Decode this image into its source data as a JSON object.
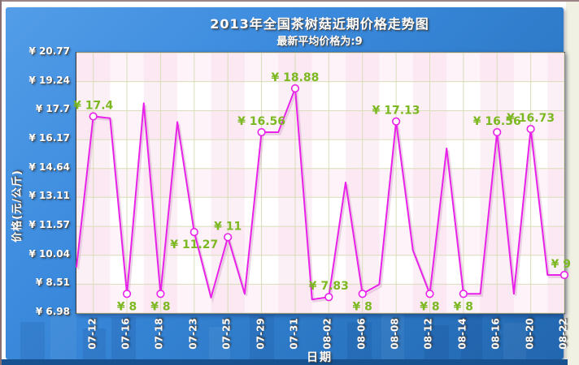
{
  "header": {
    "title": "2013年全国茶树菇近期价格走势图",
    "subtitle": "最新平均价格为:9"
  },
  "chart_data": {
    "type": "line",
    "title": "2013年全国茶树菇近期价格走势图",
    "subtitle": "最新平均价格为:9",
    "xlabel": "日期",
    "ylabel": "价格(元/公斤)",
    "ylim": [
      6.98,
      20.77
    ],
    "grid": true,
    "legend": "none",
    "y_ticks": [
      {
        "value": 20.77,
        "label": "¥ 20.77"
      },
      {
        "value": 19.24,
        "label": "¥ 19.24"
      },
      {
        "value": 17.7,
        "label": "¥ 17.7"
      },
      {
        "value": 16.17,
        "label": "¥ 16.17"
      },
      {
        "value": 14.64,
        "label": "¥ 14.64"
      },
      {
        "value": 13.11,
        "label": "¥ 13.11"
      },
      {
        "value": 11.57,
        "label": "¥ 11.57"
      },
      {
        "value": 10.04,
        "label": "¥ 10.04"
      },
      {
        "value": 8.51,
        "label": "¥ 8.51"
      },
      {
        "value": 6.98,
        "label": "¥ 6.98"
      }
    ],
    "x_tick_labels": [
      "07-12",
      "07-16",
      "07-18",
      "07-23",
      "07-25",
      "07-29",
      "07-31",
      "08-02",
      "08-06",
      "08-08",
      "08-12",
      "08-14",
      "08-16",
      "08-20",
      "08-22"
    ],
    "series": [
      {
        "name": "价格",
        "points": [
          {
            "value": 9.4
          },
          {
            "value": 17.4,
            "x_label": "07-12",
            "label": "¥ 17.4",
            "label_pos": "above"
          },
          {
            "value": 17.3
          },
          {
            "value": 8,
            "x_label": "07-16",
            "label": "¥ 8",
            "label_pos": "below"
          },
          {
            "value": 18.1
          },
          {
            "value": 8,
            "x_label": "07-18",
            "label": "¥ 8",
            "label_pos": "below"
          },
          {
            "value": 17.1
          },
          {
            "value": 11.27,
            "x_label": "07-23",
            "label": "¥ 11.27",
            "label_pos": "below"
          },
          {
            "value": 7.8
          },
          {
            "value": 11,
            "x_label": "07-25",
            "label": "¥ 11",
            "label_pos": "above"
          },
          {
            "value": 8
          },
          {
            "value": 16.56,
            "x_label": "07-29",
            "label": "¥ 16.56",
            "label_pos": "above"
          },
          {
            "value": 16.56
          },
          {
            "value": 18.88,
            "x_label": "07-31",
            "label": "¥ 18.88",
            "label_pos": "above"
          },
          {
            "value": 7.7
          },
          {
            "value": 7.83,
            "x_label": "08-02",
            "label": "¥ 7.83",
            "label_pos": "above"
          },
          {
            "value": 13.9
          },
          {
            "value": 8,
            "x_label": "08-06",
            "label": "¥ 8",
            "label_pos": "below"
          },
          {
            "value": 8.5
          },
          {
            "value": 17.13,
            "x_label": "08-08",
            "label": "¥ 17.13",
            "label_pos": "above"
          },
          {
            "value": 10.3
          },
          {
            "value": 8,
            "x_label": "08-12",
            "label": "¥ 8",
            "label_pos": "below"
          },
          {
            "value": 15.7
          },
          {
            "value": 8,
            "x_label": "08-14",
            "label": "¥ 8",
            "label_pos": "below"
          },
          {
            "value": 8
          },
          {
            "value": 16.56,
            "x_label": "08-16",
            "label": "¥ 16.56",
            "label_pos": "above"
          },
          {
            "value": 8
          },
          {
            "value": 16.73,
            "x_label": "08-20",
            "label": "¥ 16.73",
            "label_pos": "above"
          },
          {
            "value": 9
          },
          {
            "value": 9,
            "x_label": "08-22",
            "label": "¥ 9",
            "label_pos": "above-left"
          }
        ]
      }
    ],
    "colors": {
      "line": "#e822e8",
      "line_shadow": "#d9b2cf",
      "marker_fill": "#ffffff",
      "marker_stroke": "#e822e8",
      "data_label": "#7cb821",
      "grid": "#d9ddb8",
      "band_pink": "#f7d7eb",
      "plot_background": "#ffffff",
      "plot_border": "#3a3a3a",
      "panel_blue_top": "#539de8",
      "panel_blue_bottom": "#2266ae",
      "bottom_strip": "#17518f",
      "page_background": "#f1f1e3",
      "axis_text": "#ffffff"
    }
  }
}
